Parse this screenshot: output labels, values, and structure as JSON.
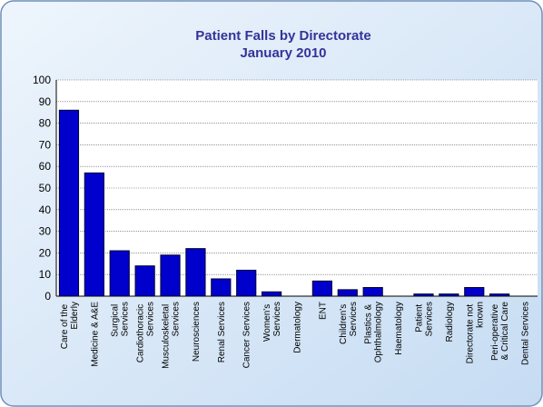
{
  "chart_data": {
    "type": "bar",
    "title": "Patient Falls by Directorate",
    "subtitle": "January 2010",
    "categories": [
      "Care of the Elderly",
      "Medicine & A&E",
      "Surgical Services",
      "Cardiothoracic Services",
      "Musculoskeletal Services",
      "Neurosciences",
      "Renal Services",
      "Cancer Services",
      "Women's Services",
      "Dermatology",
      "ENT",
      "Children's Services",
      "Plastics & Ophthalmology",
      "Haematology",
      "Patient Services",
      "Radiology",
      "Directorate not known",
      "Peri-operative & Critical Care",
      "Dental Services"
    ],
    "values": [
      86,
      57,
      21,
      14,
      19,
      22,
      8,
      12,
      2,
      0,
      7,
      3,
      4,
      0,
      1,
      1,
      4,
      1,
      0
    ],
    "color": "#0000cc",
    "ylim": [
      0,
      100
    ],
    "yticks": [
      0,
      10,
      20,
      30,
      40,
      50,
      60,
      70,
      80,
      90,
      100
    ],
    "grid": true
  }
}
